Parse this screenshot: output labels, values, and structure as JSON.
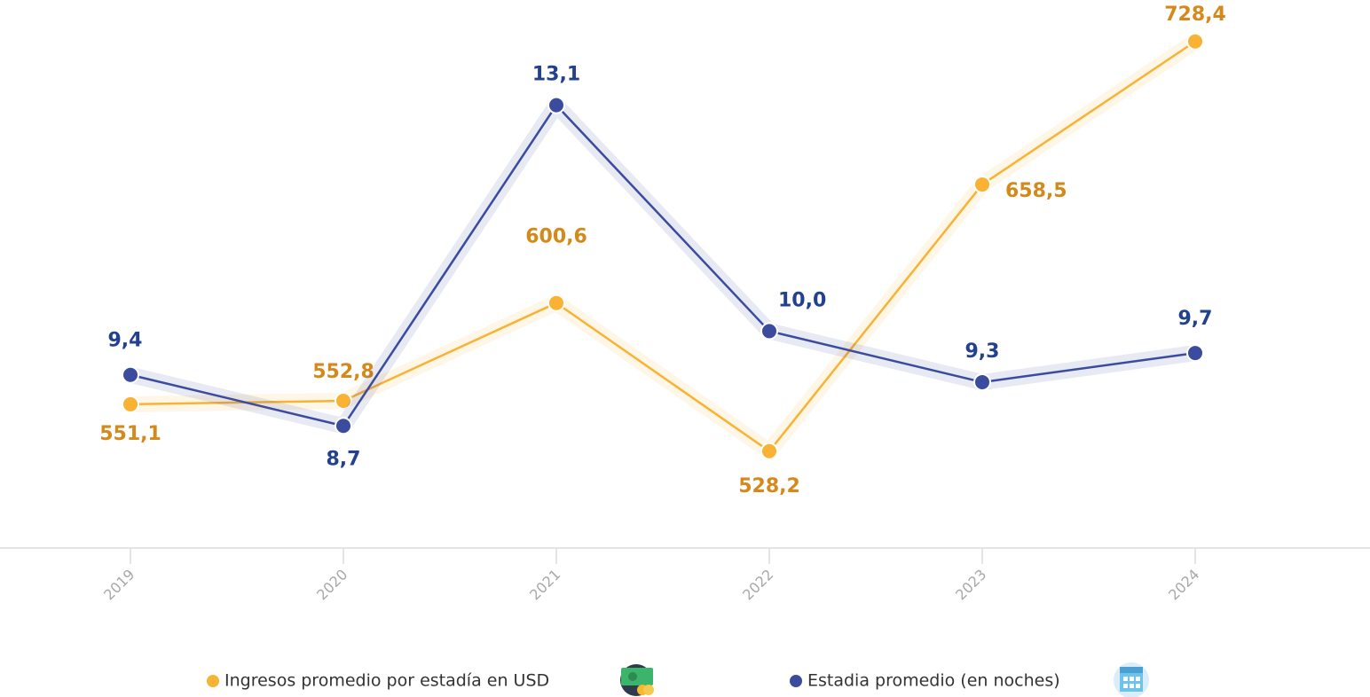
{
  "chart_data": {
    "type": "line",
    "categories": [
      "2019",
      "2020",
      "2021",
      "2022",
      "2023",
      "2024"
    ],
    "series": [
      {
        "name": "Ingresos promedio por estadía en USD",
        "color": "#f9b233",
        "label_color": "#d4891a",
        "values": [
          551.1,
          552.8,
          600.6,
          528.2,
          658.5,
          728.4
        ],
        "value_labels": [
          "551,1",
          "552,8",
          "600,6",
          "528,2",
          "658,5",
          "728,4"
        ]
      },
      {
        "name": "Estadia promedio (en noches)",
        "color": "#3b4b9e",
        "label_color": "#23418f",
        "axis": "y2",
        "values": [
          9.4,
          8.7,
          13.1,
          10.0,
          9.3,
          9.7
        ],
        "value_labels": [
          "9,4",
          "8,7",
          "13,1",
          "10,0",
          "9,3",
          "9,7"
        ]
      }
    ],
    "ylim": [
      480,
      740
    ],
    "y2lim": [
      7,
      14.3
    ]
  }
}
